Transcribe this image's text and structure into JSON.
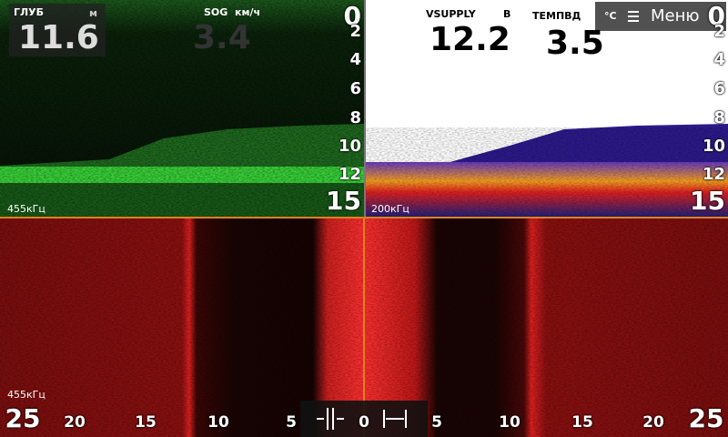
{
  "top_left": {
    "depth_label": "ГЛУБ",
    "depth_unit": "м",
    "depth_value": "11.6",
    "sog_label": "SOG",
    "sog_unit": "км/ч",
    "sog_value": "3.4",
    "frequency": "455кГц",
    "depth_scale": [
      "0",
      "2",
      "4",
      "6",
      "8",
      "10",
      "12",
      "15"
    ]
  },
  "top_right": {
    "vsupply_label": "VSUPPLY",
    "vsupply_unit": "В",
    "vsupply_value": "12.2",
    "temp_label": "ТЕМПВД",
    "temp_unit": "°C",
    "temp_value": "3.5",
    "frequency": "200кГц",
    "depth_scale": [
      "0",
      "2",
      "4",
      "6",
      "8",
      "10",
      "12",
      "15"
    ]
  },
  "menu": {
    "label": "Меню"
  },
  "bottom": {
    "frequency": "455кГц",
    "range_scale": [
      "25",
      "20",
      "15",
      "10",
      "5",
      "0",
      "5",
      "10",
      "15",
      "20",
      "25"
    ]
  }
}
